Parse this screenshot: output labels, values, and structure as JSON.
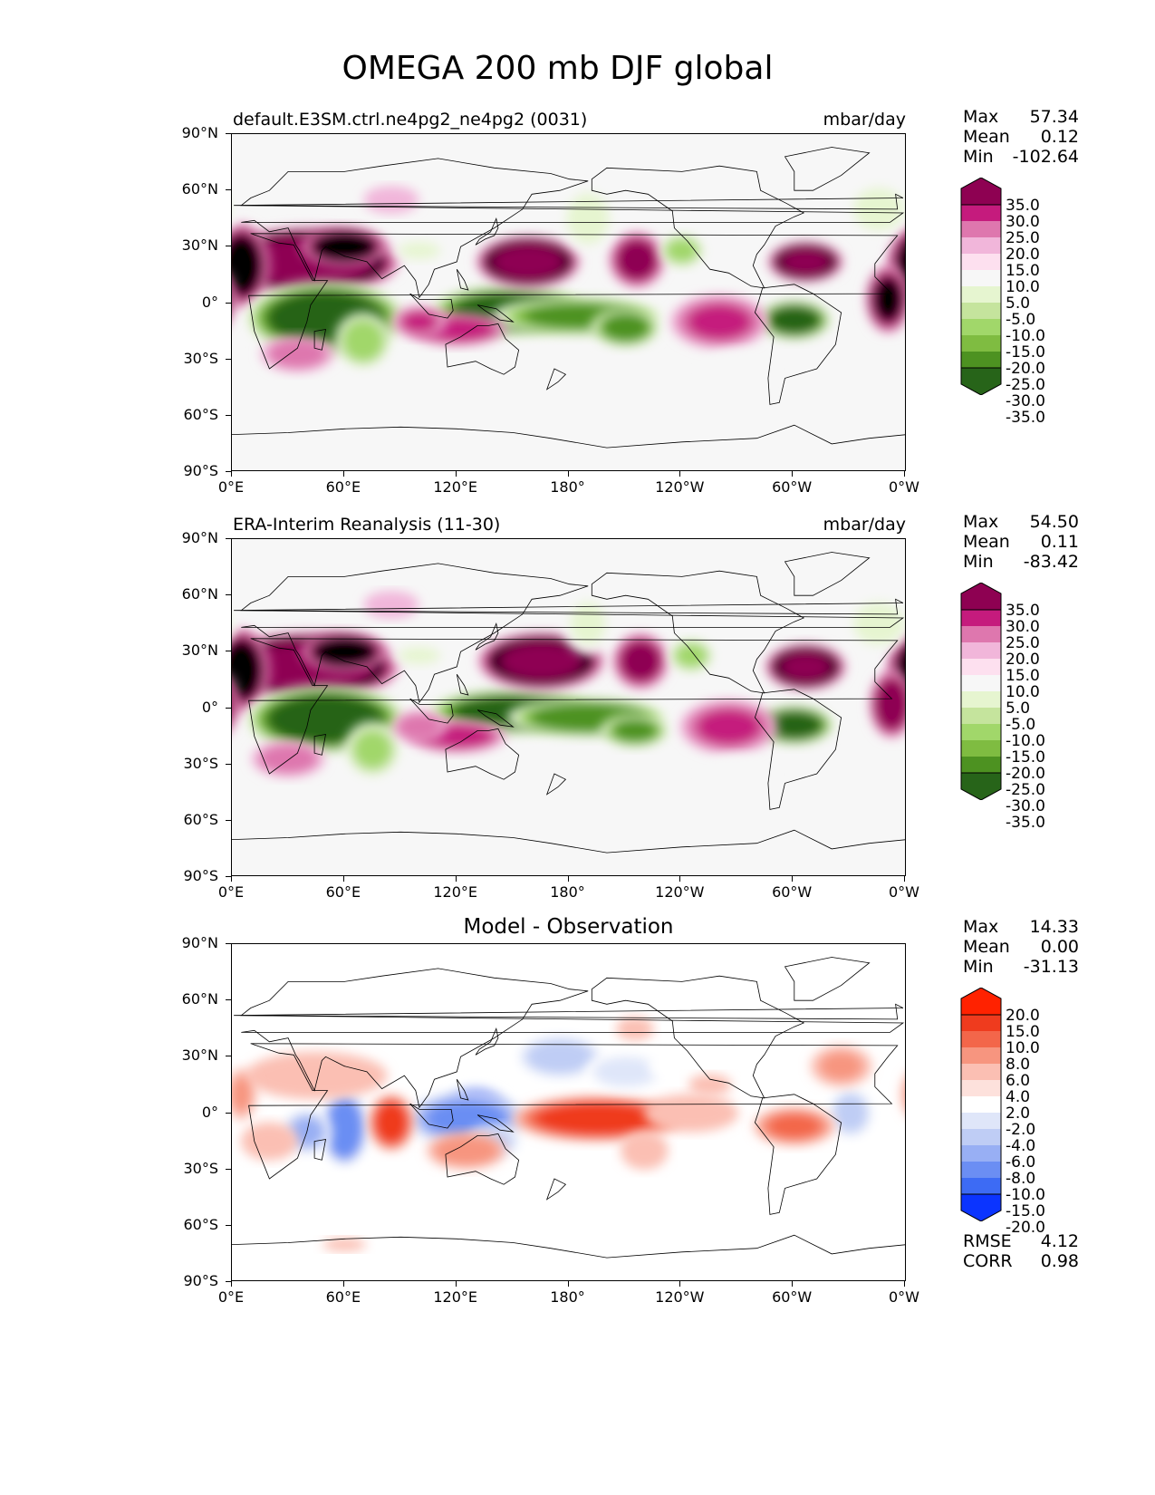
{
  "figure_title": "OMEGA 200 mb DJF global",
  "colors": {
    "piyg": [
      "#276419",
      "#4d9221",
      "#7fbc41",
      "#a1d76a",
      "#c5e49d",
      "#e6f5d0",
      "#f7f7f7",
      "#fde0ef",
      "#f1b6da",
      "#de77ae",
      "#c51b7d",
      "#8e0152"
    ],
    "diff": [
      "#0b34ff",
      "#3d6bf4",
      "#6b8ef3",
      "#98aff4",
      "#bfcdf5",
      "#dfe6f9",
      "#ffffff",
      "#fde1dc",
      "#fbbfb3",
      "#f7957f",
      "#f3664a",
      "#ef3b1e",
      "#ff2200"
    ],
    "coast": "#000000",
    "background_map": "#f7f7f7"
  },
  "x_ticks": [
    "0°E",
    "60°E",
    "120°E",
    "180°",
    "120°W",
    "60°W",
    "0°W"
  ],
  "y_ticks": [
    "90°N",
    "60°N",
    "30°N",
    "0°",
    "30°S",
    "60°S",
    "90°S"
  ],
  "chart_data": [
    {
      "type": "heatmap",
      "title": "default.E3SM.ctrl.ne4pg2_ne4pg2 (0031)",
      "units": "mbar/day",
      "stats": {
        "max_label": "Max",
        "max": "57.34",
        "mean_label": "Mean",
        "mean": "0.12",
        "min_label": "Min",
        "min": "-102.64"
      },
      "colorbar_levels": [
        "35.0",
        "30.0",
        "25.0",
        "20.0",
        "15.0",
        "10.0",
        "5.0",
        "-5.0",
        "-10.0",
        "-15.0",
        "-20.0",
        "-25.0",
        "-30.0",
        "-35.0"
      ],
      "xlim": [
        0,
        360
      ],
      "ylim": [
        -90,
        90
      ],
      "blobs": [
        {
          "lon": 40,
          "lat": 22,
          "rx": 32,
          "ry": 12,
          "value": 40
        },
        {
          "lon": 60,
          "lat": 30,
          "rx": 15,
          "ry": 7,
          "value": 30
        },
        {
          "lon": 5,
          "lat": 20,
          "rx": 10,
          "ry": 15,
          "value": 28
        },
        {
          "lon": 50,
          "lat": -8,
          "rx": 28,
          "ry": 13,
          "value": -40
        },
        {
          "lon": 70,
          "lat": -20,
          "rx": 10,
          "ry": 10,
          "value": -22
        },
        {
          "lon": 148,
          "lat": -4,
          "rx": 28,
          "ry": 9,
          "value": -38
        },
        {
          "lon": 185,
          "lat": -7,
          "rx": 30,
          "ry": 7,
          "value": -30
        },
        {
          "lon": 210,
          "lat": -13,
          "rx": 12,
          "ry": 7,
          "value": -32
        },
        {
          "lon": 158,
          "lat": 22,
          "rx": 18,
          "ry": 9,
          "value": 38
        },
        {
          "lon": 216,
          "lat": 23,
          "rx": 10,
          "ry": 10,
          "value": 22
        },
        {
          "lon": 306,
          "lat": 22,
          "rx": 13,
          "ry": 7,
          "value": 36
        },
        {
          "lon": 300,
          "lat": -9,
          "rx": 13,
          "ry": 7,
          "value": -38
        },
        {
          "lon": 350,
          "lat": 2,
          "rx": 8,
          "ry": 12,
          "value": 25
        },
        {
          "lon": 120,
          "lat": -14,
          "rx": 18,
          "ry": 6,
          "value": 18
        },
        {
          "lon": 100,
          "lat": -10,
          "rx": 10,
          "ry": 6,
          "value": 15
        },
        {
          "lon": 260,
          "lat": -10,
          "rx": 18,
          "ry": 10,
          "value": 15
        },
        {
          "lon": 35,
          "lat": -27,
          "rx": 14,
          "ry": 7,
          "value": 12
        },
        {
          "lon": 190,
          "lat": 45,
          "rx": 10,
          "ry": 12,
          "value": -12
        },
        {
          "lon": 240,
          "lat": 28,
          "rx": 8,
          "ry": 6,
          "value": -22
        },
        {
          "lon": 345,
          "lat": 50,
          "rx": 12,
          "ry": 10,
          "value": -12
        },
        {
          "lon": 100,
          "lat": 28,
          "rx": 10,
          "ry": 4,
          "value": -12
        },
        {
          "lon": 85,
          "lat": 55,
          "rx": 12,
          "ry": 6,
          "value": 7
        },
        {
          "lon": 270,
          "lat": -35,
          "rx": 15,
          "ry": 8,
          "value": -7
        }
      ]
    },
    {
      "type": "heatmap",
      "title": "ERA-Interim Reanalysis (11-30)",
      "units": "mbar/day",
      "stats": {
        "max_label": "Max",
        "max": "54.50",
        "mean_label": "Mean",
        "mean": "0.11",
        "min_label": "Min",
        "min": "-83.42"
      },
      "colorbar_levels": [
        "35.0",
        "30.0",
        "25.0",
        "20.0",
        "15.0",
        "10.0",
        "5.0",
        "-5.0",
        "-10.0",
        "-15.0",
        "-20.0",
        "-25.0",
        "-30.0",
        "-35.0"
      ],
      "xlim": [
        0,
        360
      ],
      "ylim": [
        -90,
        90
      ],
      "blobs": [
        {
          "lon": 40,
          "lat": 22,
          "rx": 32,
          "ry": 12,
          "value": 40
        },
        {
          "lon": 60,
          "lat": 30,
          "rx": 15,
          "ry": 7,
          "value": 30
        },
        {
          "lon": 5,
          "lat": 20,
          "rx": 10,
          "ry": 15,
          "value": 28
        },
        {
          "lon": 50,
          "lat": -6,
          "rx": 28,
          "ry": 12,
          "value": -40
        },
        {
          "lon": 75,
          "lat": -22,
          "rx": 10,
          "ry": 10,
          "value": -20
        },
        {
          "lon": 150,
          "lat": -2,
          "rx": 30,
          "ry": 8,
          "value": -38
        },
        {
          "lon": 190,
          "lat": -5,
          "rx": 28,
          "ry": 7,
          "value": -34
        },
        {
          "lon": 215,
          "lat": -12,
          "rx": 12,
          "ry": 6,
          "value": -30
        },
        {
          "lon": 165,
          "lat": 25,
          "rx": 22,
          "ry": 10,
          "value": 36
        },
        {
          "lon": 218,
          "lat": 25,
          "rx": 10,
          "ry": 10,
          "value": 22
        },
        {
          "lon": 306,
          "lat": 22,
          "rx": 14,
          "ry": 8,
          "value": 35
        },
        {
          "lon": 300,
          "lat": -9,
          "rx": 14,
          "ry": 7,
          "value": -38
        },
        {
          "lon": 352,
          "lat": 2,
          "rx": 8,
          "ry": 12,
          "value": 24
        },
        {
          "lon": 120,
          "lat": -15,
          "rx": 18,
          "ry": 6,
          "value": 17
        },
        {
          "lon": 100,
          "lat": -10,
          "rx": 10,
          "ry": 6,
          "value": 14
        },
        {
          "lon": 265,
          "lat": -10,
          "rx": 18,
          "ry": 10,
          "value": 15
        },
        {
          "lon": 30,
          "lat": -27,
          "rx": 14,
          "ry": 7,
          "value": 12
        },
        {
          "lon": 190,
          "lat": 45,
          "rx": 10,
          "ry": 12,
          "value": -10
        },
        {
          "lon": 245,
          "lat": 28,
          "rx": 8,
          "ry": 6,
          "value": -22
        },
        {
          "lon": 345,
          "lat": 45,
          "rx": 12,
          "ry": 10,
          "value": -12
        },
        {
          "lon": 100,
          "lat": 28,
          "rx": 10,
          "ry": 4,
          "value": -12
        },
        {
          "lon": 85,
          "lat": 55,
          "rx": 12,
          "ry": 6,
          "value": 7
        },
        {
          "lon": 270,
          "lat": -35,
          "rx": 15,
          "ry": 8,
          "value": -7
        }
      ]
    },
    {
      "type": "heatmap",
      "title": "Model - Observation",
      "units": "",
      "stats": {
        "max_label": "Max",
        "max": "14.33",
        "mean_label": "Mean",
        "mean": "0.00",
        "min_label": "Min",
        "min": "-31.13"
      },
      "metrics": {
        "rmse_label": "RMSE",
        "rmse": "4.12",
        "corr_label": "CORR",
        "corr": "0.98"
      },
      "colorbar_levels": [
        "20.0",
        "15.0",
        "10.0",
        "8.0",
        "6.0",
        "4.0",
        "2.0",
        "-2.0",
        "-4.0",
        "-6.0",
        "-8.0",
        "-10.0",
        "-15.0",
        "-20.0"
      ],
      "xlim": [
        0,
        360
      ],
      "ylim": [
        -90,
        90
      ],
      "blobs": [
        {
          "lon": 130,
          "lat": 0,
          "rx": 12,
          "ry": 9,
          "value": -20
        },
        {
          "lon": 125,
          "lat": -3,
          "rx": 22,
          "ry": 10,
          "value": -10
        },
        {
          "lon": 140,
          "lat": -15,
          "rx": 10,
          "ry": 6,
          "value": -6
        },
        {
          "lon": 60,
          "lat": -8,
          "rx": 8,
          "ry": 13,
          "value": -14
        },
        {
          "lon": 40,
          "lat": -10,
          "rx": 9,
          "ry": 8,
          "value": -8
        },
        {
          "lon": 85,
          "lat": -5,
          "rx": 8,
          "ry": 10,
          "value": 9
        },
        {
          "lon": 195,
          "lat": -3,
          "rx": 30,
          "ry": 8,
          "value": 9
        },
        {
          "lon": 175,
          "lat": 30,
          "rx": 16,
          "ry": 8,
          "value": -7
        },
        {
          "lon": 210,
          "lat": 22,
          "rx": 15,
          "ry": 7,
          "value": -5
        },
        {
          "lon": 235,
          "lat": 25,
          "rx": 10,
          "ry": 6,
          "value": -3
        },
        {
          "lon": 330,
          "lat": 0,
          "rx": 8,
          "ry": 9,
          "value": -7
        },
        {
          "lon": 300,
          "lat": -7,
          "rx": 15,
          "ry": 7,
          "value": 6
        },
        {
          "lon": 125,
          "lat": -20,
          "rx": 15,
          "ry": 7,
          "value": 5
        },
        {
          "lon": 45,
          "lat": 20,
          "rx": 30,
          "ry": 10,
          "value": 3
        },
        {
          "lon": 5,
          "lat": 10,
          "rx": 6,
          "ry": 10,
          "value": 4
        },
        {
          "lon": 325,
          "lat": 25,
          "rx": 12,
          "ry": 8,
          "value": 4
        },
        {
          "lon": 245,
          "lat": 0,
          "rx": 20,
          "ry": 8,
          "value": 3
        },
        {
          "lon": 220,
          "lat": -20,
          "rx": 10,
          "ry": 8,
          "value": 3
        },
        {
          "lon": 20,
          "lat": -15,
          "rx": 12,
          "ry": 8,
          "value": 3
        },
        {
          "lon": 215,
          "lat": 45,
          "rx": 8,
          "ry": 5,
          "value": 3
        },
        {
          "lon": 255,
          "lat": 15,
          "rx": 12,
          "ry": 6,
          "value": 2
        },
        {
          "lon": 60,
          "lat": -70,
          "rx": 10,
          "ry": 3,
          "value": 2.5
        }
      ]
    }
  ]
}
